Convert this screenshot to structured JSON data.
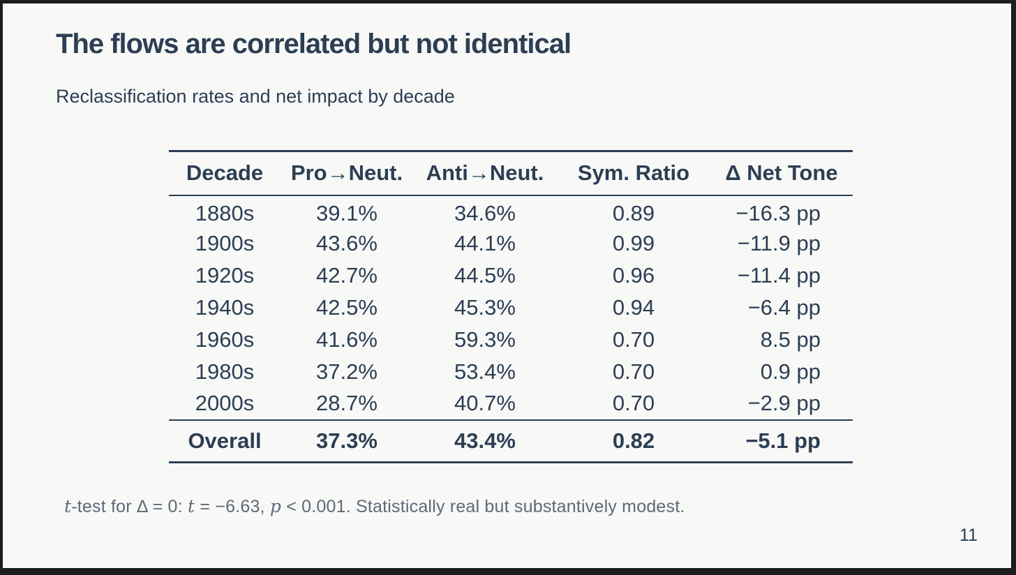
{
  "slide": {
    "title": "The flows are correlated but not identical",
    "subtitle": "Reclassification rates and net impact by decade",
    "page_number": "11"
  },
  "colors": {
    "navy": "#2c3e53",
    "background": "#f8f8f7",
    "frame": "#1d1d1f",
    "muted": "#5d6a77"
  },
  "table": {
    "headers": [
      "Decade",
      "Pro→Neut.",
      "Anti→Neut.",
      "Sym. Ratio",
      "Δ Net Tone"
    ],
    "rows": [
      [
        "1880s",
        "39.1%",
        "34.6%",
        "0.89",
        "−16.3 pp"
      ],
      [
        "1900s",
        "43.6%",
        "44.1%",
        "0.99",
        "−11.9 pp"
      ],
      [
        "1920s",
        "42.7%",
        "44.5%",
        "0.96",
        "−11.4 pp"
      ],
      [
        "1940s",
        "42.5%",
        "45.3%",
        "0.94",
        "−6.4 pp"
      ],
      [
        "1960s",
        "41.6%",
        "59.3%",
        "0.70",
        "8.5 pp"
      ],
      [
        "1980s",
        "37.2%",
        "53.4%",
        "0.70",
        "0.9 pp"
      ],
      [
        "2000s",
        "28.7%",
        "40.7%",
        "0.70",
        "−2.9 pp"
      ]
    ],
    "overall": [
      "Overall",
      "37.3%",
      "43.4%",
      "0.82",
      "−5.1 pp"
    ]
  },
  "footnote": {
    "t1": "t",
    "s1": "-test for Δ = 0:  ",
    "t2": "t",
    "s2": " = −6.63, ",
    "p1": "p",
    "s3": " < 0.001.  Statistically real but substantively modest."
  }
}
